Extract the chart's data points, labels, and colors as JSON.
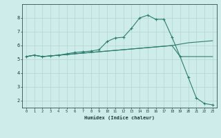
{
  "xlabel": "Humidex (Indice chaleur)",
  "bg_color": "#ceecea",
  "grid_color": "#b8d8d5",
  "line_color": "#2d7d6f",
  "xlim": [
    -0.5,
    23.5
  ],
  "ylim": [
    1.5,
    9.0
  ],
  "xticks": [
    0,
    1,
    2,
    3,
    4,
    5,
    6,
    7,
    8,
    9,
    10,
    11,
    12,
    13,
    14,
    15,
    16,
    17,
    18,
    19,
    20,
    21,
    22,
    23
  ],
  "yticks": [
    2,
    3,
    4,
    5,
    6,
    7,
    8
  ],
  "line1_x": [
    0,
    1,
    2,
    3,
    4,
    5,
    6,
    7,
    8,
    9,
    10,
    11,
    12,
    13,
    14,
    15,
    16,
    17,
    18,
    19,
    20,
    21,
    22,
    23
  ],
  "line1_y": [
    5.2,
    5.3,
    5.2,
    5.25,
    5.3,
    5.35,
    5.4,
    5.45,
    5.5,
    5.55,
    5.6,
    5.65,
    5.7,
    5.75,
    5.8,
    5.85,
    5.9,
    5.95,
    6.0,
    5.2,
    5.2,
    5.2,
    5.2,
    5.2
  ],
  "line2_x": [
    0,
    1,
    2,
    3,
    4,
    5,
    6,
    7,
    8,
    9,
    10,
    11,
    12,
    13,
    14,
    15,
    16,
    17,
    18,
    19,
    20,
    21,
    22,
    23
  ],
  "line2_y": [
    5.2,
    5.3,
    5.2,
    5.25,
    5.3,
    5.4,
    5.5,
    5.55,
    5.6,
    5.7,
    6.3,
    6.55,
    6.6,
    7.25,
    8.0,
    8.2,
    7.9,
    7.9,
    6.6,
    5.2,
    3.7,
    2.2,
    1.8,
    1.7
  ],
  "line3_x": [
    0,
    1,
    2,
    3,
    4,
    5,
    6,
    7,
    8,
    9,
    10,
    11,
    12,
    13,
    14,
    15,
    16,
    17,
    18,
    19,
    20,
    21,
    22,
    23
  ],
  "line3_y": [
    5.2,
    5.3,
    5.2,
    5.25,
    5.3,
    5.35,
    5.4,
    5.45,
    5.5,
    5.55,
    5.6,
    5.65,
    5.7,
    5.75,
    5.8,
    5.85,
    5.9,
    5.95,
    6.0,
    6.1,
    6.2,
    6.25,
    6.3,
    6.35
  ]
}
